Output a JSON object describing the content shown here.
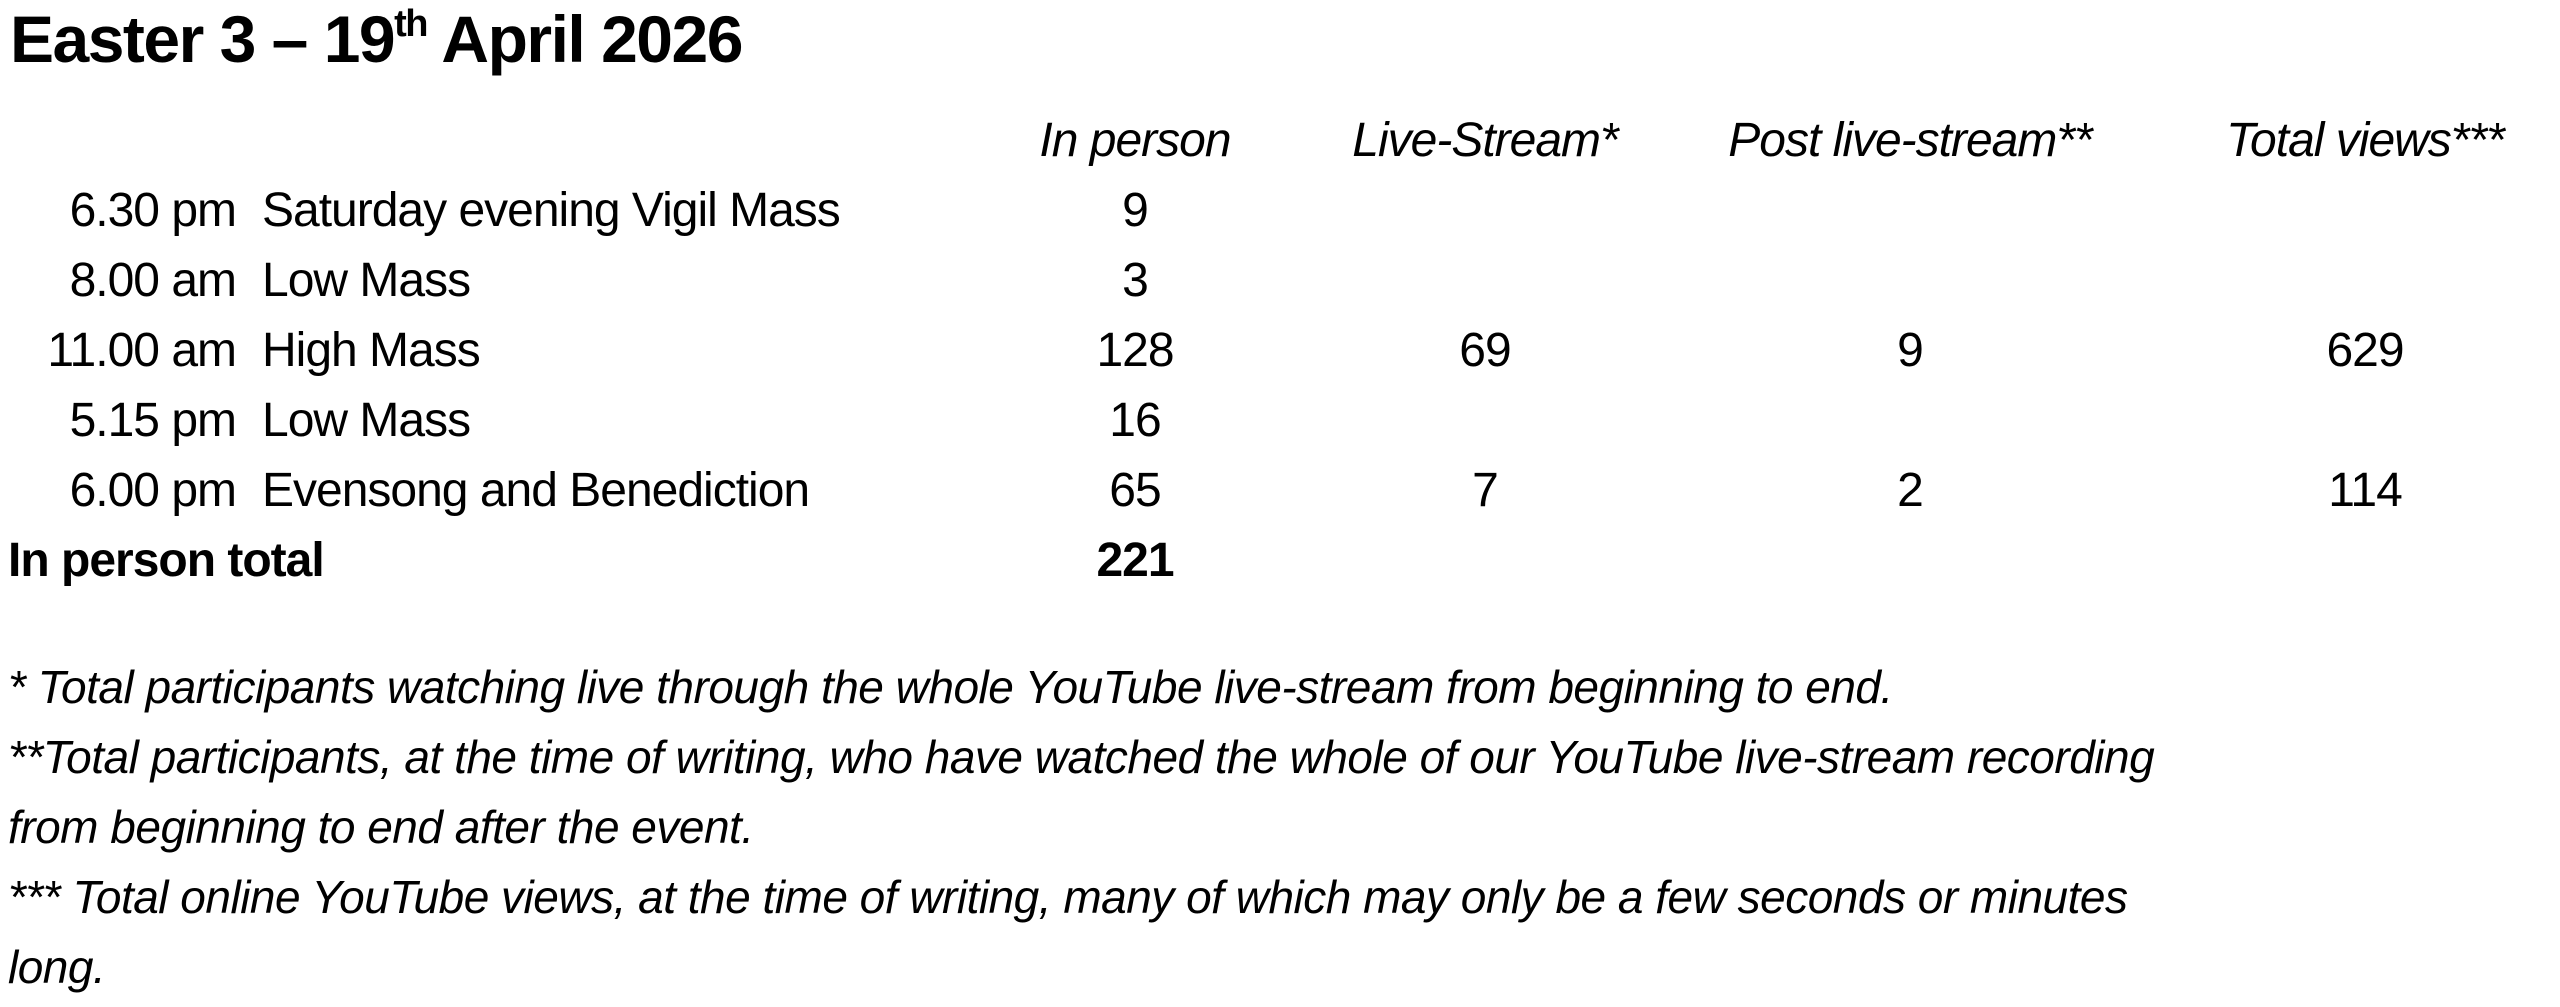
{
  "title": {
    "prefix": "Easter 3 – 19",
    "superscript": "th",
    "suffix": " April 2026"
  },
  "table": {
    "columns": [
      "In person",
      "Live-Stream*",
      "Post live-stream**",
      "Total views***"
    ],
    "rows": [
      {
        "time": "6.30 pm",
        "service": "Saturday evening Vigil Mass",
        "in_person": "9",
        "live_stream": "",
        "post_live_stream": "",
        "total_views": ""
      },
      {
        "time": "8.00 am",
        "service": "Low Mass",
        "in_person": "3",
        "live_stream": "",
        "post_live_stream": "",
        "total_views": ""
      },
      {
        "time": "11.00 am",
        "service": "High Mass",
        "in_person": "128",
        "live_stream": "69",
        "post_live_stream": "9",
        "total_views": "629"
      },
      {
        "time": "5.15 pm",
        "service": "Low Mass",
        "in_person": "16",
        "live_stream": "",
        "post_live_stream": "",
        "total_views": ""
      },
      {
        "time": "6.00 pm",
        "service": "Evensong and Benediction",
        "in_person": "65",
        "live_stream": "7",
        "post_live_stream": "2",
        "total_views": "114"
      }
    ],
    "total_row": {
      "label": "In person total",
      "in_person": "221"
    }
  },
  "footnotes": {
    "lines": [
      "* Total participants watching live through the whole YouTube live-stream from beginning to end.",
      "**Total participants, at the time of writing, who have watched the whole of our YouTube live-stream recording",
      "from beginning to end after the event.",
      "*** Total online YouTube views, at the time of writing, many of which may only be a few seconds or minutes",
      "long."
    ]
  },
  "colors": {
    "text": "#000000",
    "background": "#ffffff"
  }
}
